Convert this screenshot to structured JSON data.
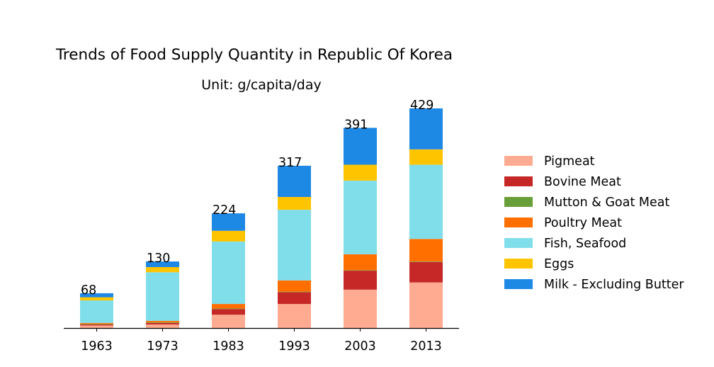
{
  "chart_data": {
    "type": "bar",
    "stacked": true,
    "title": "Trends of Food Supply Quantity in Republic Of Korea",
    "subtitle": "Unit: g/capita/day",
    "categories": [
      "1963",
      "1973",
      "1983",
      "1993",
      "2003",
      "2013"
    ],
    "totals": [
      68,
      130,
      224,
      317,
      391,
      429
    ],
    "series": [
      {
        "name": "Pigmeat",
        "color": "#FFAB91",
        "values": [
          5,
          7,
          26,
          47,
          75,
          89
        ]
      },
      {
        "name": "Bovine Meat",
        "color": "#C62828",
        "values": [
          2,
          3,
          11,
          23,
          37,
          40
        ]
      },
      {
        "name": "Mutton & Goat Meat",
        "color": "#689F38",
        "values": [
          1,
          1,
          1,
          1,
          1,
          1
        ]
      },
      {
        "name": "Poultry Meat",
        "color": "#FF6F00",
        "values": [
          2,
          3,
          9,
          22,
          31,
          44
        ]
      },
      {
        "name": "Fish, Seafood",
        "color": "#80DEEA",
        "values": [
          44,
          95,
          122,
          138,
          144,
          145
        ]
      },
      {
        "name": "Eggs",
        "color": "#FFC400",
        "values": [
          6,
          10,
          21,
          25,
          31,
          30
        ]
      },
      {
        "name": "Milk - Excluding Butter",
        "color": "#1E88E5",
        "values": [
          8,
          11,
          34,
          61,
          72,
          80
        ]
      }
    ],
    "ylim": [
      0,
      429
    ],
    "grid": false,
    "legend": "right"
  }
}
